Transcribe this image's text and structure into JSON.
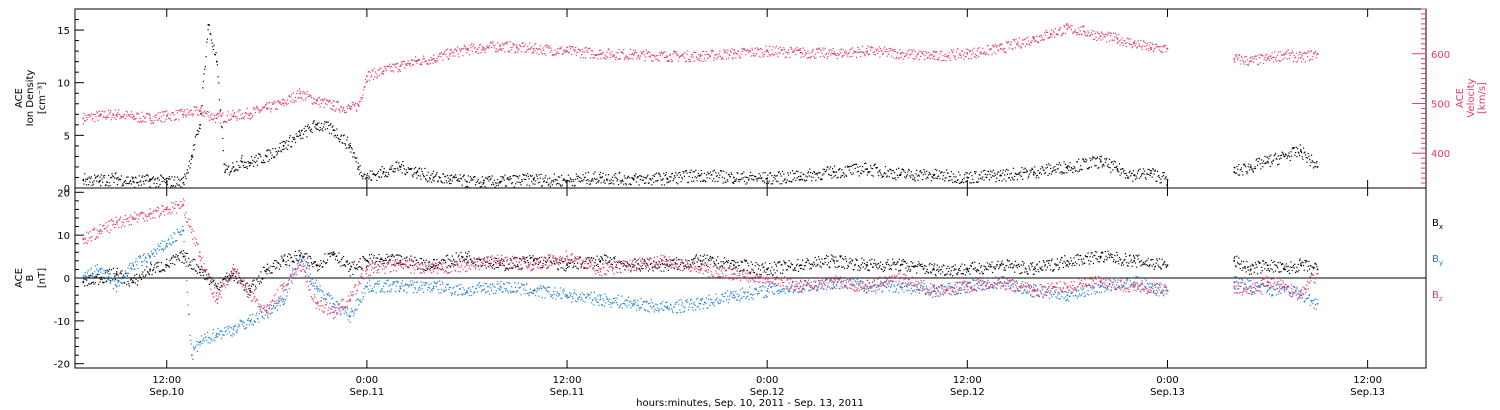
{
  "colors": {
    "density": "#000000",
    "velocity": "#e8386a",
    "bx": "#000000",
    "by": "#1f7fd8",
    "bz": "#e8386a",
    "axis": "#000000"
  },
  "x_axis": {
    "start_hour": 6.5,
    "end_hour": 87.5,
    "ticks": [
      {
        "hour": 12,
        "time": "12:00",
        "date": "Sep.10"
      },
      {
        "hour": 24,
        "time": "0:00",
        "date": "Sep.11"
      },
      {
        "hour": 36,
        "time": "12:00",
        "date": "Sep.11"
      },
      {
        "hour": 48,
        "time": "0:00",
        "date": "Sep.12"
      },
      {
        "hour": 60,
        "time": "12:00",
        "date": "Sep.12"
      },
      {
        "hour": 72,
        "time": "0:00",
        "date": "Sep.13"
      },
      {
        "hour": 84,
        "time": "12:00",
        "date": "Sep.13"
      }
    ],
    "label": "hours:minutes, Sep. 10, 2011 - Sep. 13, 2011"
  },
  "chart_data": [
    {
      "type": "scatter",
      "panel": "top",
      "ylabel": [
        "ACE",
        "Ion Density",
        "[cm⁻³]"
      ],
      "ylim": [
        0,
        17
      ],
      "yticks": [
        0,
        5,
        10,
        15
      ],
      "y2label": [
        "ACE",
        "Velocity",
        "[km/s]"
      ],
      "y2lim": [
        330,
        690
      ],
      "y2ticks": [
        400,
        500,
        600
      ],
      "series": [
        {
          "key": "density",
          "axis": "left",
          "x": [
            7,
            8,
            9,
            10,
            11,
            12,
            13,
            13.5,
            14,
            14.5,
            15,
            15.5,
            16,
            16.5,
            17,
            18,
            19,
            20,
            21,
            22,
            23,
            23.5,
            24,
            25,
            26,
            27,
            28,
            29,
            30,
            31,
            32,
            34,
            36,
            38,
            40,
            42,
            44,
            46,
            48,
            50,
            52,
            54,
            56,
            58,
            60,
            62,
            64,
            66,
            68,
            69,
            70,
            71,
            72,
            76,
            77,
            78,
            79,
            80,
            81
          ],
          "y": [
            0.8,
            0.7,
            0.9,
            0.6,
            0.7,
            0.6,
            0.5,
            3,
            6,
            15.5,
            12,
            1.5,
            2,
            2.5,
            2.4,
            3,
            4,
            5,
            6,
            5.5,
            4,
            2,
            1,
            1.5,
            2,
            1.5,
            1,
            0.8,
            0.6,
            0.5,
            0.6,
            0.8,
            0.7,
            1,
            0.8,
            0.9,
            1.2,
            1,
            0.9,
            1.1,
            1.5,
            1.8,
            1.3,
            1.2,
            1,
            1.2,
            1.5,
            2,
            2.5,
            1.8,
            1.2,
            1.4,
            0.8,
            1.5,
            2,
            2.5,
            3,
            3.5,
            2
          ]
        },
        {
          "key": "velocity",
          "axis": "right",
          "x": [
            7,
            8,
            9,
            10,
            11,
            12,
            13,
            14,
            15,
            16,
            17,
            18,
            19,
            20,
            21,
            22,
            23,
            23.5,
            24,
            25,
            26,
            27,
            28,
            29,
            30,
            31,
            32,
            33,
            34,
            36,
            38,
            40,
            42,
            44,
            46,
            48,
            50,
            52,
            54,
            56,
            58,
            60,
            62,
            63,
            64,
            65,
            66,
            67,
            68,
            69,
            70,
            71,
            72,
            76,
            77,
            78,
            79,
            80,
            81
          ],
          "y": [
            470,
            475,
            478,
            473,
            470,
            475,
            478,
            485,
            470,
            475,
            480,
            490,
            500,
            520,
            505,
            495,
            490,
            495,
            555,
            565,
            575,
            585,
            590,
            600,
            608,
            612,
            615,
            612,
            610,
            605,
            600,
            598,
            595,
            595,
            600,
            605,
            602,
            600,
            605,
            600,
            595,
            600,
            610,
            620,
            630,
            640,
            650,
            645,
            635,
            630,
            620,
            612,
            610,
            590,
            585,
            590,
            598,
            592,
            600
          ]
        }
      ]
    },
    {
      "type": "scatter",
      "panel": "bottom",
      "ylabel": [
        "ACE",
        "B",
        "[nT]"
      ],
      "ylim": [
        -21,
        21
      ],
      "yticks": [
        -20,
        -10,
        0,
        10,
        20
      ],
      "series": [
        {
          "key": "bx",
          "name": "Bx",
          "x": [
            7,
            8,
            9,
            10,
            11,
            12,
            13,
            14,
            15,
            16,
            17,
            18,
            19,
            20,
            21,
            22,
            23,
            24,
            26,
            28,
            30,
            32,
            34,
            36,
            38,
            40,
            42,
            44,
            46,
            48,
            50,
            52,
            54,
            56,
            58,
            60,
            62,
            64,
            66,
            68,
            70,
            72,
            76,
            77,
            78,
            79,
            80,
            81
          ],
          "y": [
            -1,
            0,
            1,
            -1,
            2,
            3,
            5,
            2,
            -2,
            1,
            -3,
            2,
            4,
            5,
            3,
            6,
            2,
            4,
            4,
            3,
            5,
            3,
            4,
            3,
            4,
            3,
            3,
            4,
            3,
            2,
            3,
            4,
            3,
            3,
            2,
            2,
            3,
            2,
            4,
            5,
            4,
            3,
            4,
            2,
            3,
            2,
            3,
            2
          ]
        },
        {
          "key": "by",
          "name": "By",
          "x": [
            7,
            8,
            9,
            10,
            11,
            12,
            13,
            13.5,
            14,
            15,
            16,
            17,
            18,
            19,
            20,
            21,
            22,
            23,
            24,
            26,
            28,
            30,
            32,
            34,
            36,
            38,
            40,
            42,
            44,
            46,
            48,
            50,
            52,
            54,
            56,
            58,
            60,
            62,
            64,
            66,
            68,
            70,
            72,
            76,
            77,
            78,
            79,
            80,
            81
          ],
          "y": [
            0,
            2,
            -2,
            3,
            5,
            8,
            11,
            -18,
            -15,
            -13,
            -12,
            -10,
            -8,
            -5,
            5,
            -2,
            -6,
            -9,
            -2,
            -2,
            -2,
            -3,
            -2,
            -3,
            -4,
            -5,
            -6,
            -7,
            -6,
            -4,
            -3,
            -2,
            -1,
            -2,
            -2,
            -3,
            -2,
            -1,
            -3,
            -4,
            -2,
            -1,
            -3,
            -1,
            -2,
            -3,
            -2,
            -4,
            -6
          ]
        },
        {
          "key": "bz",
          "name": "Bz",
          "x": [
            7,
            8,
            9,
            10,
            11,
            12,
            13,
            14,
            15,
            16,
            17,
            18,
            19,
            20,
            21,
            22,
            23,
            24,
            26,
            28,
            30,
            32,
            34,
            36,
            38,
            40,
            42,
            44,
            46,
            48,
            50,
            52,
            54,
            56,
            58,
            60,
            62,
            64,
            66,
            68,
            70,
            72,
            76,
            77,
            78,
            79,
            80,
            81
          ],
          "y": [
            9,
            11,
            13,
            14,
            15,
            16,
            17,
            5,
            -5,
            2,
            -4,
            -8,
            -2,
            3,
            -6,
            -8,
            -5,
            2,
            3,
            2,
            3,
            4,
            3,
            5,
            2,
            3,
            4,
            2,
            1,
            0,
            -2,
            -1,
            -2,
            0,
            -3,
            -2,
            -1,
            -3,
            -2,
            -1,
            -2,
            -3,
            -2,
            -3,
            -1,
            -2,
            -4,
            1
          ]
        }
      ],
      "legend": [
        {
          "label": "B",
          "sub": "x",
          "key": "bx"
        },
        {
          "label": "B",
          "sub": "y",
          "key": "by"
        },
        {
          "label": "B",
          "sub": "z",
          "key": "bz"
        }
      ]
    }
  ]
}
